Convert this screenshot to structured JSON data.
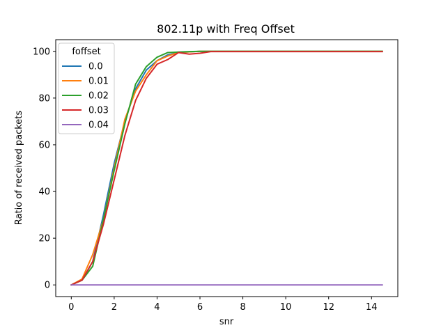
{
  "chart_data": {
    "type": "line",
    "title": "802.11p with Freq Offset",
    "xlabel": "snr",
    "ylabel": "Ratio of received packets",
    "xlim": [
      -0.725,
      15.225
    ],
    "ylim": [
      -5,
      105
    ],
    "xticks": [
      0,
      2,
      4,
      6,
      8,
      10,
      12,
      14
    ],
    "yticks": [
      0,
      20,
      40,
      60,
      80,
      100
    ],
    "grid": false,
    "legend": {
      "title": "foffset",
      "placement": "upper-left"
    },
    "x": [
      0,
      0.5,
      1,
      1.5,
      2,
      2.5,
      3,
      3.5,
      4,
      4.5,
      5,
      5.5,
      6,
      6.5,
      7,
      7.5,
      8,
      8.5,
      9,
      9.5,
      10,
      10.5,
      11,
      11.5,
      12,
      12.5,
      13,
      13.5,
      14,
      14.5
    ],
    "series": [
      {
        "name": "0.0",
        "color": "#1f77b4",
        "values": [
          0,
          2,
          10,
          30,
          52,
          70,
          84,
          92,
          96,
          98.5,
          99.5,
          99.8,
          100,
          100,
          100,
          100,
          100,
          100,
          100,
          100,
          100,
          100,
          100,
          100,
          100,
          100,
          100,
          100,
          100,
          100
        ]
      },
      {
        "name": "0.01",
        "color": "#ff7f0e",
        "values": [
          0,
          2.5,
          13,
          28,
          50,
          71,
          83,
          90,
          96,
          98,
          99.5,
          99.8,
          100,
          100,
          100,
          100,
          100,
          100,
          100,
          100,
          100,
          100,
          100,
          100,
          100,
          100,
          100,
          100,
          100,
          100
        ]
      },
      {
        "name": "0.02",
        "color": "#2ca02c",
        "values": [
          0,
          2,
          8,
          28,
          49,
          69,
          86,
          93.5,
          97.5,
          99.5,
          99.7,
          99.9,
          100,
          100,
          100,
          100,
          100,
          100,
          100,
          100,
          100,
          100,
          100,
          100,
          100,
          100,
          100,
          100,
          100,
          100
        ]
      },
      {
        "name": "0.03",
        "color": "#d62728",
        "values": [
          0,
          2,
          10,
          26,
          45,
          64,
          79,
          88.5,
          94.5,
          96.5,
          99.5,
          98.8,
          99.2,
          99.9,
          99.9,
          99.9,
          99.9,
          99.9,
          99.9,
          99.9,
          99.9,
          99.9,
          99.9,
          99.9,
          99.9,
          99.9,
          99.9,
          99.9,
          99.9,
          99.9
        ]
      },
      {
        "name": "0.04",
        "color": "#9467bd",
        "values": [
          0,
          0,
          0,
          0,
          0,
          0,
          0,
          0,
          0,
          0,
          0,
          0,
          0,
          0,
          0,
          0,
          0,
          0,
          0,
          0,
          0,
          0,
          0,
          0,
          0,
          0,
          0,
          0,
          0,
          0
        ]
      }
    ]
  }
}
